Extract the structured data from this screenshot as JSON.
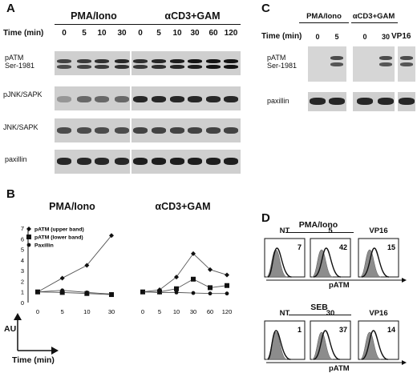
{
  "panelA": {
    "letter": "A",
    "group1": "PMA/Iono",
    "group2": "αCD3+GAM",
    "time_label": "Time (min)",
    "times1": [
      "0",
      "5",
      "10",
      "30"
    ],
    "times2": [
      "0",
      "5",
      "10",
      "30",
      "60",
      "120"
    ],
    "rows": [
      {
        "label": "pATM\nSer-1981"
      },
      {
        "label": "pJNK/SAPK"
      },
      {
        "label": "JNK/SAPK"
      },
      {
        "label": "paxillin"
      }
    ]
  },
  "panelB": {
    "letter": "B",
    "title1": "PMA/Iono",
    "title2": "αCD3+GAM",
    "ylabel": "AU",
    "xlabel": "Time (min)",
    "legend": [
      "pATM (upper band)",
      "pATM (lower band)",
      "Paxillin"
    ]
  },
  "chart_data": [
    {
      "type": "line",
      "title": "PMA/Iono",
      "xlabel": "Time (min)",
      "ylabel": "AU",
      "x": [
        "0",
        "5",
        "10",
        "30"
      ],
      "ylim": [
        0,
        7
      ],
      "yticks": [
        0,
        1,
        2,
        3,
        4,
        5,
        6,
        7
      ],
      "series": [
        {
          "name": "pATM (upper band)",
          "marker": "diamond",
          "values": [
            1.0,
            2.3,
            3.5,
            6.3
          ]
        },
        {
          "name": "pATM (lower band)",
          "marker": "square",
          "values": [
            1.0,
            0.95,
            0.85,
            0.75
          ]
        },
        {
          "name": "Paxillin",
          "marker": "circle",
          "values": [
            1.0,
            1.15,
            0.95,
            0.8
          ]
        }
      ]
    },
    {
      "type": "line",
      "title": "αCD3+GAM",
      "xlabel": "Time (min)",
      "ylabel": "AU",
      "x": [
        "0",
        "5",
        "10",
        "30",
        "60",
        "120"
      ],
      "ylim": [
        0,
        7
      ],
      "series": [
        {
          "name": "pATM (upper band)",
          "marker": "diamond",
          "values": [
            1.0,
            1.2,
            2.4,
            4.6,
            3.1,
            2.6
          ]
        },
        {
          "name": "pATM (lower band)",
          "marker": "square",
          "values": [
            1.0,
            1.0,
            1.3,
            2.2,
            1.4,
            1.6
          ]
        },
        {
          "name": "Paxillin",
          "marker": "circle",
          "values": [
            1.0,
            0.95,
            0.95,
            0.9,
            0.85,
            0.85
          ]
        }
      ]
    }
  ],
  "panelC": {
    "letter": "C",
    "group1": "PMA/Iono",
    "group2": "αCD3+GAM",
    "group3": "VP16",
    "time_label": "Time (min)",
    "times1": [
      "0",
      "5"
    ],
    "times2": [
      "0",
      "30"
    ],
    "rows": [
      {
        "label": "pATM\nSer-1981"
      },
      {
        "label": "paxillin"
      }
    ]
  },
  "panelD": {
    "letter": "D",
    "top_group": "PMA/Iono",
    "bottom_group": "SEB",
    "xlabel": "pATM",
    "top": [
      {
        "label": "NT",
        "value": "7"
      },
      {
        "label": "5",
        "value": "42"
      },
      {
        "label": "VP16",
        "value": "15"
      }
    ],
    "bottom": [
      {
        "label": "NT",
        "value": "1"
      },
      {
        "label": "30",
        "value": "37"
      },
      {
        "label": "VP16",
        "value": "14"
      }
    ]
  },
  "colors": {
    "ink": "#111111",
    "blot_bg": "#cfcfcf",
    "band": "#2a2a2a",
    "histogram_fill": "#8c8c8c"
  }
}
